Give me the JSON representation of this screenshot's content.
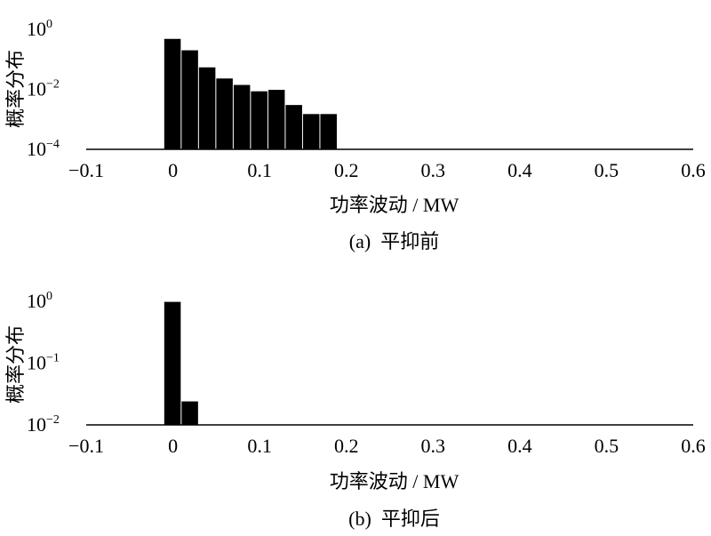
{
  "chart_data": [
    {
      "type": "bar",
      "y_scale": "log",
      "ylabel": "概率分布",
      "xlabel": "功率波动 / MW",
      "caption": "(a)  平抑前",
      "xlim": [
        -0.1,
        0.6
      ],
      "ylim": [
        0.0001,
        1
      ],
      "x_ticks": [
        -0.1,
        0,
        0.1,
        0.2,
        0.3,
        0.4,
        0.5,
        0.6
      ],
      "x_tick_labels": [
        "−0.1",
        "0",
        "0.1",
        "0.2",
        "0.3",
        "0.4",
        "0.5",
        "0.6"
      ],
      "y_ticks": [
        {
          "value": 1,
          "base": "10",
          "exp": "0"
        },
        {
          "value": 0.01,
          "base": "10",
          "exp": "-2"
        },
        {
          "value": 0.0001,
          "base": "10",
          "exp": "-4"
        }
      ],
      "bin_width": 0.02,
      "x": [
        0,
        0.02,
        0.04,
        0.06,
        0.08,
        0.1,
        0.12,
        0.14,
        0.16,
        0.18
      ],
      "values": [
        0.48,
        0.2,
        0.054,
        0.023,
        0.014,
        0.0086,
        0.0096,
        0.003,
        0.0015,
        0.0015
      ],
      "grid": false
    },
    {
      "type": "bar",
      "y_scale": "log",
      "ylabel": "概率分布",
      "xlabel": "功率波动 / MW",
      "caption": "(b)  平抑后",
      "xlim": [
        -0.1,
        0.6
      ],
      "ylim": [
        0.01,
        1
      ],
      "x_ticks": [
        -0.1,
        0,
        0.1,
        0.2,
        0.3,
        0.4,
        0.5,
        0.6
      ],
      "x_tick_labels": [
        "−0.1",
        "0",
        "0.1",
        "0.2",
        "0.3",
        "0.4",
        "0.5",
        "0.6"
      ],
      "y_ticks": [
        {
          "value": 1,
          "base": "10",
          "exp": "0"
        },
        {
          "value": 0.1,
          "base": "10",
          "exp": "-1"
        },
        {
          "value": 0.01,
          "base": "10",
          "exp": "-2"
        }
      ],
      "bin_width": 0.02,
      "x": [
        0,
        0.02
      ],
      "values": [
        0.98,
        0.024
      ],
      "grid": false
    }
  ]
}
